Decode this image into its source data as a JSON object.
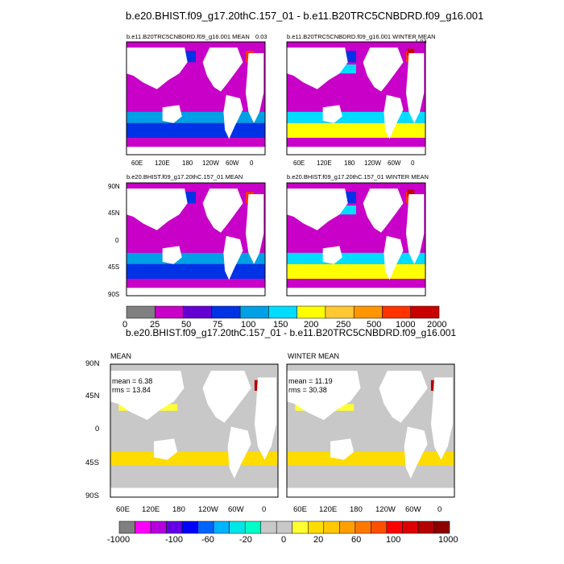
{
  "title_top": "b.e20.BHIST.f09_g17.20thC.157_01 - b.e11.B20TRC5CNBDRD.f09_g16.001",
  "title_diff": "b.e20.BHIST.f09_g17.20thC.157_01 - b.e11.B20TRC5CNBDRD.f09_g16.001",
  "panels": {
    "p1_title": "b.e11.B20TRC5CNBDRD.f09_g16.001 MEAN",
    "p1_corner": "0.03",
    "p2_title": "b.e11.B20TRC5CNBDRD.f09_g16.001 WINTER MEAN",
    "p2_corner": "1.03",
    "p3_title": "b.e20.BHIST.f09_g17.20thC.157_01 MEAN",
    "p4_title": "b.e20.BHIST.f09_g17.20thC.157_01 WINTER MEAN",
    "p5_title": "MEAN",
    "p6_title": "WINTER MEAN"
  },
  "stats": {
    "p5_mean": "mean = 6.38",
    "p5_rms": "rms = 13.84",
    "p6_mean": "mean = 11.19",
    "p6_rms": "rms = 30.38"
  },
  "lon_ticks": [
    "60E",
    "120E",
    "180",
    "120W",
    "60W",
    "0"
  ],
  "lat_ticks": [
    "90N",
    "45N",
    "0",
    "45S",
    "90S"
  ],
  "colorbar_top": {
    "labels": [
      "0",
      "25",
      "50",
      "75",
      "100",
      "150",
      "200",
      "250",
      "500",
      "1000",
      "2000"
    ],
    "colors": [
      "#808080",
      "#c800c8",
      "#6400d2",
      "#0032e6",
      "#00a0e6",
      "#00dcff",
      "#ffff00",
      "#ffc832",
      "#ff9600",
      "#ff3200",
      "#c80000"
    ]
  },
  "colorbar_bottom": {
    "labels": [
      "-1000",
      "-100",
      "-60",
      "-20",
      "0",
      "20",
      "60",
      "100",
      "1000"
    ],
    "colors": [
      "#808080",
      "#ff00ff",
      "#b400dc",
      "#6400e6",
      "#0000ff",
      "#0064ff",
      "#00b4ff",
      "#00e6e6",
      "#00ffc8",
      "#c8c8c8",
      "#c8c8c8",
      "#ffff32",
      "#ffdc00",
      "#ffc800",
      "#ffa000",
      "#ff7800",
      "#ff5000",
      "#ff0000",
      "#dc0000",
      "#b40000",
      "#8c0000"
    ]
  },
  "chart_data": [
    {
      "type": "heatmap",
      "title": "b.e11.B20TRC5CNBDRD.f09_g16.001 MEAN",
      "xlabel": "",
      "ylabel": "",
      "x_ticks": [
        "60E",
        "120E",
        "180",
        "120W",
        "60W",
        "0"
      ],
      "y_ticks": [
        "90N",
        "45N",
        "0",
        "45S",
        "90S"
      ],
      "levels": [
        0,
        25,
        50,
        75,
        100,
        150,
        200,
        250,
        500,
        1000,
        2000
      ]
    },
    {
      "type": "heatmap",
      "title": "b.e11.B20TRC5CNBDRD.f09_g16.001 WINTER MEAN",
      "levels": [
        0,
        25,
        50,
        75,
        100,
        150,
        200,
        250,
        500,
        1000,
        2000
      ]
    },
    {
      "type": "heatmap",
      "title": "b.e20.BHIST.f09_g17.20thC.157_01 MEAN",
      "levels": [
        0,
        25,
        50,
        75,
        100,
        150,
        200,
        250,
        500,
        1000,
        2000
      ]
    },
    {
      "type": "heatmap",
      "title": "b.e20.BHIST.f09_g17.20thC.157_01 WINTER MEAN",
      "levels": [
        0,
        25,
        50,
        75,
        100,
        150,
        200,
        250,
        500,
        1000,
        2000
      ]
    },
    {
      "type": "heatmap",
      "title": "MEAN",
      "mean": 6.38,
      "rms": 13.84,
      "levels": [
        -1000,
        -100,
        -60,
        -20,
        0,
        20,
        60,
        100,
        1000
      ]
    },
    {
      "type": "heatmap",
      "title": "WINTER MEAN",
      "mean": 11.19,
      "rms": 30.38,
      "levels": [
        -1000,
        -100,
        -60,
        -20,
        0,
        20,
        60,
        100,
        1000
      ]
    }
  ]
}
